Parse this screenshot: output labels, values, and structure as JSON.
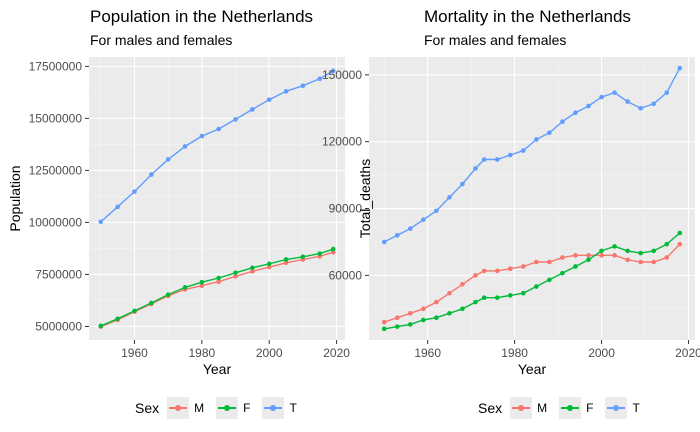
{
  "colors": {
    "M": "#f8766d",
    "F": "#00ba38",
    "T": "#619cff",
    "panel_bg": "#ebebeb",
    "grid": "#ffffff"
  },
  "chart_data": [
    {
      "type": "scatter",
      "title": "Population in the Netherlands",
      "subtitle": "For males and females",
      "xlabel": "Year",
      "ylabel": "Population",
      "xlim": [
        1946.5,
        2022.5
      ],
      "ylim": [
        4350000,
        17950000
      ],
      "xticks": [
        1960,
        1980,
        2000,
        2020
      ],
      "xtick_labels": [
        "1960",
        "1980",
        "2000",
        "2020"
      ],
      "yticks": [
        5000000,
        7500000,
        10000000,
        12500000,
        15000000,
        17500000
      ],
      "ytick_labels": [
        "5000000",
        "7500000",
        "10000000",
        "12500000",
        "15000000",
        "17500000"
      ],
      "grid": true,
      "legend": {
        "title": "Sex",
        "placement": "bottom",
        "labels": [
          "M",
          "F",
          "T"
        ]
      },
      "series": [
        {
          "name": "M",
          "x": [
            1950,
            1955,
            1960,
            1965,
            1970,
            1975,
            1980,
            1985,
            1990,
            1995,
            2000,
            2005,
            2010,
            2015,
            2019
          ],
          "y": [
            4990000,
            5320000,
            5710000,
            6080000,
            6470000,
            6780000,
            6960000,
            7150000,
            7410000,
            7650000,
            7850000,
            8060000,
            8220000,
            8370000,
            8570000
          ]
        },
        {
          "name": "F",
          "x": [
            1950,
            1955,
            1960,
            1965,
            1970,
            1975,
            1980,
            1985,
            1990,
            1995,
            2000,
            2005,
            2010,
            2015,
            2019
          ],
          "y": [
            5030000,
            5370000,
            5750000,
            6130000,
            6530000,
            6880000,
            7130000,
            7330000,
            7580000,
            7820000,
            8010000,
            8220000,
            8350000,
            8500000,
            8720000
          ]
        },
        {
          "name": "T",
          "x": [
            1950,
            1955,
            1960,
            1965,
            1970,
            1975,
            1980,
            1985,
            1990,
            1995,
            2000,
            2005,
            2010,
            2015,
            2019
          ],
          "y": [
            10030000,
            10750000,
            11480000,
            12300000,
            13030000,
            13650000,
            14150000,
            14490000,
            14950000,
            15430000,
            15900000,
            16300000,
            16570000,
            16900000,
            17280000
          ]
        }
      ]
    },
    {
      "type": "scatter",
      "title": "Mortality in the Netherlands",
      "subtitle": "For males and females",
      "xlabel": "Year",
      "ylabel": "Total_deaths",
      "xlim": [
        1946.5,
        2021.5
      ],
      "ylim": [
        31000,
        158000
      ],
      "xticks": [
        1960,
        1980,
        2000,
        2020
      ],
      "xtick_labels": [
        "1960",
        "1980",
        "2000",
        "2020"
      ],
      "yticks": [
        60000,
        90000,
        120000,
        150000
      ],
      "ytick_labels": [
        "60000",
        "90000",
        "120000",
        "150000"
      ],
      "grid": true,
      "legend": {
        "title": "Sex",
        "placement": "bottom",
        "labels": [
          "M",
          "F",
          "T"
        ]
      },
      "series": [
        {
          "name": "M",
          "x": [
            1950,
            1953,
            1956,
            1959,
            1962,
            1965,
            1968,
            1971,
            1973,
            1976,
            1979,
            1982,
            1985,
            1988,
            1991,
            1994,
            1997,
            2000,
            2003,
            2006,
            2009,
            2012,
            2015,
            2018
          ],
          "y": [
            39000,
            41000,
            43000,
            45000,
            48000,
            52000,
            56000,
            60000,
            62000,
            62000,
            63000,
            64000,
            66000,
            66000,
            68000,
            69000,
            69000,
            69000,
            69000,
            67000,
            66000,
            66000,
            68000,
            74000
          ]
        },
        {
          "name": "F",
          "x": [
            1950,
            1953,
            1956,
            1959,
            1962,
            1965,
            1968,
            1971,
            1973,
            1976,
            1979,
            1982,
            1985,
            1988,
            1991,
            1994,
            1997,
            2000,
            2003,
            2006,
            2009,
            2012,
            2015,
            2018
          ],
          "y": [
            36000,
            37000,
            38000,
            40000,
            41000,
            43000,
            45000,
            48000,
            50000,
            50000,
            51000,
            52000,
            55000,
            58000,
            61000,
            64000,
            67000,
            71000,
            73000,
            71000,
            70000,
            71000,
            74000,
            79000
          ]
        },
        {
          "name": "T",
          "x": [
            1950,
            1953,
            1956,
            1959,
            1962,
            1965,
            1968,
            1971,
            1973,
            1976,
            1979,
            1982,
            1985,
            1988,
            1991,
            1994,
            1997,
            2000,
            2003,
            2006,
            2009,
            2012,
            2015,
            2018
          ],
          "y": [
            75000,
            78000,
            81000,
            85000,
            89000,
            95000,
            101000,
            108000,
            112000,
            112000,
            114000,
            116000,
            121000,
            124000,
            129000,
            133000,
            136000,
            140000,
            142000,
            138000,
            135000,
            137000,
            142000,
            153000
          ]
        }
      ]
    }
  ]
}
